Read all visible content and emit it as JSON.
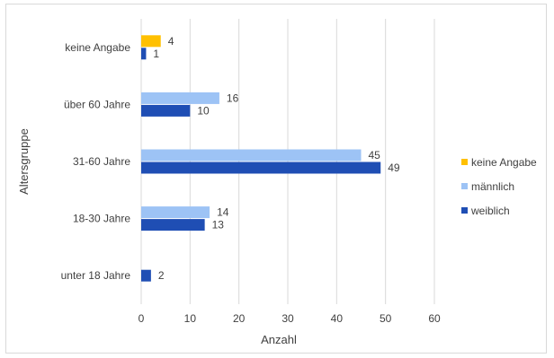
{
  "chart_data": {
    "type": "bar",
    "orientation": "horizontal",
    "categories": [
      "unter 18 Jahre",
      "18-30 Jahre",
      "31-60 Jahre",
      "über 60 Jahre",
      "keine Angabe"
    ],
    "series": [
      {
        "name": "keine Angabe",
        "color": "#FFC000",
        "values": [
          null,
          null,
          null,
          null,
          4
        ]
      },
      {
        "name": "männlich",
        "color": "#9DC3F5",
        "values": [
          null,
          14,
          45,
          16,
          null
        ]
      },
      {
        "name": "weiblich",
        "color": "#1F4EB4",
        "values": [
          2,
          13,
          49,
          10,
          1
        ]
      }
    ],
    "title": "",
    "xlabel": "Anzahl",
    "ylabel": "Altersgruppe",
    "xlim": [
      0,
      60
    ],
    "xticks": [
      0,
      10,
      20,
      30,
      40,
      50,
      60
    ],
    "grid": true,
    "data_labels": true,
    "legend_position": "right"
  }
}
